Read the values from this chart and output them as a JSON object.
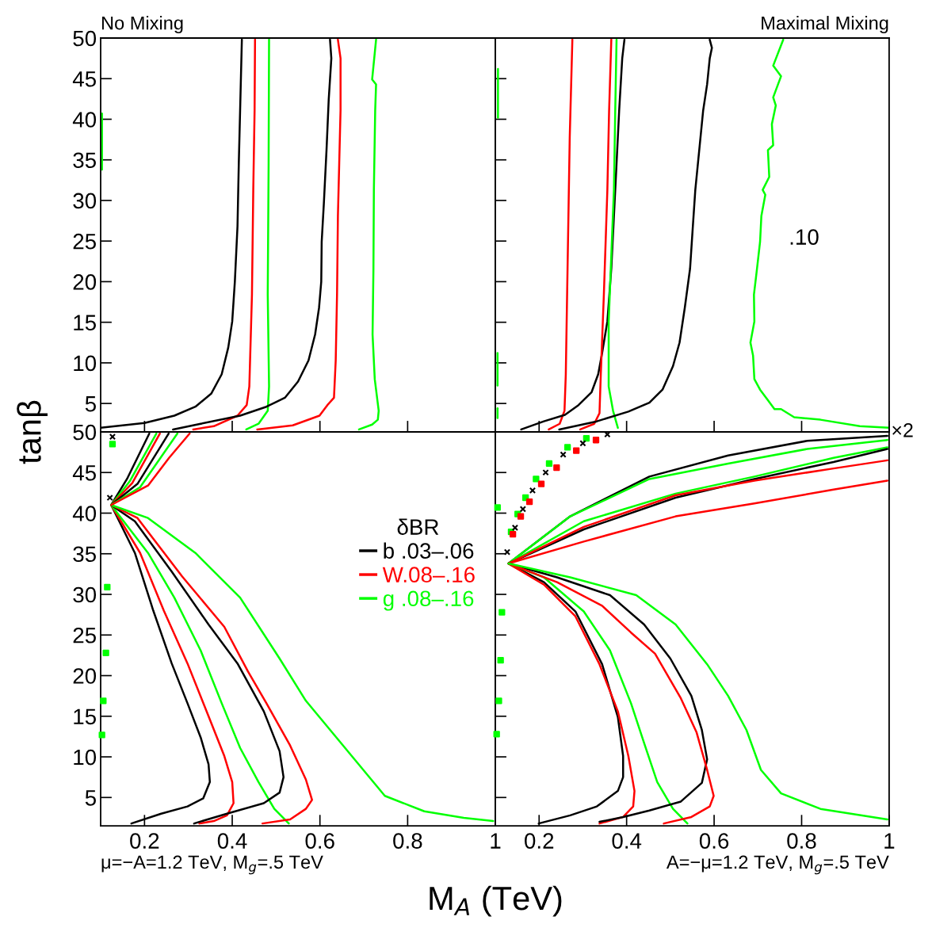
{
  "chart_data": [
    {
      "type": "line",
      "title": "No Mixing",
      "xlim": [
        0.1,
        1.0
      ],
      "ylim": [
        1.5,
        50
      ],
      "xticks": [
        0.2,
        0.4,
        0.6,
        0.8,
        1
      ],
      "yticks": [
        5,
        10,
        15,
        20,
        25,
        30,
        35,
        40,
        45,
        50
      ],
      "tick_labels": "y",
      "grid": false,
      "legend": false,
      "series": [
        {
          "color": "#000000",
          "x": [
            0.1,
            0.2,
            0.268,
            0.316,
            0.352,
            0.376,
            0.391,
            0.4,
            0.406,
            0.412,
            0.415,
            0.418,
            0.422
          ],
          "values": [
            2.0,
            2.6,
            3.5,
            4.6,
            6.2,
            8.6,
            11.9,
            15.1,
            20,
            26.8,
            34.6,
            41.1,
            49.8
          ]
        },
        {
          "color": "#ff0000",
          "x": [
            0.311,
            0.358,
            0.412,
            0.433,
            0.439,
            0.445,
            0.448,
            0.451,
            0.452
          ],
          "values": [
            1.8,
            2.2,
            3.5,
            4.8,
            7.1,
            18.4,
            31.3,
            41.1,
            49.8
          ]
        },
        {
          "color": "#00ff00",
          "x": [
            0.432,
            0.46,
            0.481,
            0.484,
            0.481,
            0.483,
            0.484
          ],
          "values": [
            1.8,
            2.5,
            4.1,
            7.1,
            18.4,
            34.6,
            49.8
          ]
        },
        {
          "color": "#000000",
          "x": [
            0.265,
            0.328,
            0.418,
            0.478,
            0.52,
            0.55,
            0.574,
            0.589,
            0.598,
            0.603,
            0.604,
            0.609,
            0.615,
            0.62,
            0.626,
            0.623
          ],
          "values": [
            1.8,
            2.5,
            3.5,
            4.6,
            5.7,
            7.7,
            10.3,
            13.5,
            16.8,
            20,
            24.9,
            29.7,
            36.2,
            42.4,
            47.5,
            49.8
          ]
        },
        {
          "color": "#ff0000",
          "x": [
            0.457,
            0.538,
            0.599,
            0.617,
            0.632,
            0.636,
            0.639,
            0.641,
            0.644,
            0.647,
            0.647,
            0.641
          ],
          "values": [
            1.8,
            2.3,
            3.5,
            4.8,
            5.7,
            10.3,
            18.4,
            28.1,
            34.6,
            41.1,
            47.5,
            49.8
          ]
        },
        {
          "color": "#00ff00",
          "x": [
            0.689,
            0.719,
            0.732,
            0.734,
            0.725,
            0.72,
            0.722,
            0.723,
            0.726,
            0.728,
            0.719,
            0.728
          ],
          "values": [
            1.8,
            2.4,
            3.0,
            4.1,
            8.0,
            13.5,
            21.6,
            31.3,
            41.1,
            44.3,
            44.9,
            49.8
          ]
        },
        {
          "color": "#00ff00",
          "x": [
            0.103,
            0.103
          ],
          "values": [
            33.8,
            40.7
          ]
        }
      ]
    },
    {
      "type": "line",
      "title": "Maximal Mixing",
      "xlim": [
        0.1,
        1.0
      ],
      "ylim": [
        1.5,
        50
      ],
      "xticks": [
        0.2,
        0.4,
        0.6,
        0.8,
        1
      ],
      "yticks": [
        5,
        10,
        15,
        20,
        25,
        30,
        35,
        40,
        45,
        50
      ],
      "tick_labels": false,
      "grid": false,
      "legend": false,
      "annotations": [
        ".10"
      ],
      "series": [
        {
          "color": "#ff0000",
          "x": [
            0.222,
            0.247,
            0.258,
            0.261,
            0.265,
            0.27,
            0.276
          ],
          "values": [
            1.8,
            2.5,
            4.1,
            8.6,
            21.6,
            37.8,
            49.8
          ]
        },
        {
          "color": "#000000",
          "x": [
            0.159,
            0.211,
            0.259,
            0.29,
            0.32,
            0.335,
            0.344,
            0.356,
            0.365,
            0.374,
            0.383,
            0.39,
            0.395
          ],
          "values": [
            1.8,
            2.8,
            3.6,
            4.8,
            6.4,
            8.6,
            11.2,
            15.1,
            21.6,
            31.3,
            41.1,
            47.5,
            49.8
          ]
        },
        {
          "color": "#ff0000",
          "x": [
            0.294,
            0.326,
            0.338,
            0.341,
            0.348,
            0.356,
            0.36,
            0.365
          ],
          "values": [
            1.8,
            2.5,
            3.8,
            8.6,
            18.4,
            31.3,
            41.1,
            49.8
          ]
        },
        {
          "color": "#00ff00",
          "x": [
            0.38,
            0.369,
            0.359,
            0.359,
            0.365,
            0.371,
            0.374,
            0.377
          ],
          "values": [
            2.0,
            4.1,
            7.1,
            15.1,
            23.2,
            31.3,
            41.1,
            49.8
          ]
        },
        {
          "color": "#000000",
          "x": [
            0.246,
            0.332,
            0.404,
            0.452,
            0.482,
            0.506,
            0.521,
            0.533,
            0.545,
            0.551,
            0.557,
            0.566,
            0.575,
            0.584,
            0.59,
            0.595,
            0.59
          ],
          "values": [
            1.8,
            2.8,
            4.0,
            5.1,
            6.7,
            9.6,
            12.5,
            16.8,
            21.6,
            26.5,
            31.3,
            36.2,
            41.1,
            44.3,
            47.5,
            48.8,
            49.8
          ]
        },
        {
          "color": "#00ff00",
          "x": [
            1.0,
            0.933,
            0.843,
            0.783,
            0.753,
            0.738,
            0.723,
            0.705,
            0.692,
            0.689,
            0.683,
            0.692,
            0.691,
            0.698,
            0.705,
            0.708,
            0.717,
            0.711,
            0.726,
            0.723,
            0.735,
            0.732,
            0.741,
            0.735,
            0.753,
            0.735,
            0.758
          ],
          "values": [
            2.0,
            2.2,
            3.0,
            3.3,
            4.3,
            4.3,
            5.4,
            6.7,
            8.0,
            10.9,
            12.5,
            15.1,
            18.4,
            21.6,
            24.9,
            28.1,
            30.7,
            31.3,
            32.9,
            36.2,
            36.8,
            39.4,
            41.7,
            42.7,
            45.3,
            46.6,
            49.8
          ]
        },
        {
          "color": "#00ff00",
          "x": [
            0.106,
            0.106
          ],
          "values": [
            40.2,
            46.2
          ]
        },
        {
          "color": "#00ff00",
          "x": [
            0.105,
            0.105
          ],
          "values": [
            7.2,
            11.2
          ]
        },
        {
          "color": "#00ff00",
          "x": [
            0.105,
            0.105
          ],
          "values": [
            3.2,
            4.4
          ]
        }
      ]
    },
    {
      "type": "line",
      "xlabel": "M$_{A}$ (TeV)",
      "ylabel": "tanβ",
      "subtitle": "μ=−A=1.2 TeV, M$_{g}$=.5 TeV",
      "xlim": [
        0.1,
        1.0
      ],
      "ylim": [
        1.5,
        50
      ],
      "xticks": [
        0.2,
        0.4,
        0.6,
        0.8,
        1
      ],
      "yticks": [
        5,
        10,
        15,
        20,
        25,
        30,
        35,
        40,
        45,
        50
      ],
      "grid": false,
      "legend": "upper right",
      "legend_title": "δBR",
      "series": [
        {
          "name": "b .03–.06",
          "color": "#000000",
          "x": [
            0.124,
            0.178,
            0.22,
            0.262,
            0.298,
            0.328,
            0.346,
            0.349,
            0.334,
            0.298,
            0.238,
            0.17
          ],
          "values": [
            41.0,
            35.1,
            28.0,
            21.5,
            16.6,
            12.4,
            9.1,
            6.9,
            4.9,
            3.9,
            3.0,
            1.8
          ]
        },
        {
          "name": "W.08–.16",
          "color": "#ff0000",
          "x": [
            0.124,
            0.19,
            0.244,
            0.298,
            0.346,
            0.382,
            0.4,
            0.403,
            0.388,
            0.358,
            0.325
          ],
          "values": [
            41.0,
            35.1,
            28.0,
            21.5,
            15.0,
            10.1,
            6.9,
            4.3,
            2.8,
            2.1,
            1.8
          ]
        },
        {
          "name": "g .08–.16",
          "color": "#00ff00",
          "x": [
            0.124,
            0.208,
            0.268,
            0.328,
            0.376,
            0.418,
            0.46,
            0.496,
            0.529
          ],
          "values": [
            41.0,
            35.1,
            29.6,
            23.1,
            16.6,
            11.1,
            6.9,
            3.6,
            1.8
          ]
        },
        {
          "color": "#000000",
          "x": [
            0.124,
            0.178,
            0.262,
            0.346,
            0.412,
            0.472,
            0.508,
            0.517,
            0.508,
            0.472,
            0.388,
            0.313
          ],
          "values": [
            41.0,
            39.0,
            32.8,
            26.3,
            21.5,
            15.6,
            10.7,
            7.5,
            5.6,
            4.3,
            3.0,
            1.8
          ]
        },
        {
          "color": "#ff0000",
          "x": [
            0.124,
            0.184,
            0.286,
            0.382,
            0.436,
            0.478,
            0.532,
            0.568,
            0.582,
            0.568,
            0.532,
            0.469
          ],
          "values": [
            41.0,
            39.4,
            32.2,
            26.0,
            20.5,
            16.6,
            11.4,
            7.2,
            4.7,
            3.6,
            2.3,
            1.8
          ]
        },
        {
          "color": "#00ff00",
          "x": [
            0.124,
            0.208,
            0.316,
            0.418,
            0.508,
            0.568,
            0.628,
            0.688,
            0.748,
            0.838,
            0.928,
            0.995
          ],
          "values": [
            41.0,
            39.4,
            35.1,
            29.6,
            22.1,
            16.9,
            13.0,
            9.1,
            5.2,
            3.3,
            2.5,
            2.1
          ]
        },
        {
          "color": "#000000",
          "x": [
            0.124,
            0.16,
            0.211
          ],
          "values": [
            41.0,
            44.2,
            49.8
          ]
        },
        {
          "color": "#00ff00",
          "x": [
            0.124,
            0.166,
            0.227
          ],
          "values": [
            41.0,
            43.9,
            49.8
          ]
        },
        {
          "color": "#ff0000",
          "x": [
            0.124,
            0.172,
            0.235
          ],
          "values": [
            41.0,
            43.7,
            49.8
          ]
        },
        {
          "color": "#000000",
          "x": [
            0.124,
            0.184,
            0.255
          ],
          "values": [
            41.0,
            43.6,
            49.8
          ]
        },
        {
          "color": "#00ff00",
          "x": [
            0.124,
            0.19,
            0.275
          ],
          "values": [
            41.0,
            43.2,
            49.8
          ]
        },
        {
          "color": "#ff0000",
          "x": [
            0.124,
            0.208,
            0.256,
            0.303
          ],
          "values": [
            41.0,
            43.4,
            46.8,
            49.8
          ]
        },
        {
          "type": "scatter",
          "marker": "square",
          "color": "#00ff00",
          "x": [
            0.115,
            0.112,
            0.106,
            0.103,
            0.127
          ],
          "values": [
            30.9,
            22.8,
            16.9,
            12.7,
            48.5
          ]
        },
        {
          "type": "scatter",
          "marker": "cross",
          "color": "#000000",
          "x": [
            0.121,
            0.127
          ],
          "values": [
            41.9,
            49.4
          ]
        }
      ]
    },
    {
      "type": "line",
      "subtitle": "A=−μ=1.2 TeV, M$_{g}$=.5 TeV",
      "annotations": [
        "×2"
      ],
      "xlim": [
        0.1,
        1.0
      ],
      "ylim": [
        1.5,
        50
      ],
      "xticks": [
        0.2,
        0.4,
        0.6,
        0.8,
        1
      ],
      "yticks": [
        5,
        10,
        15,
        20,
        25,
        30,
        35,
        40,
        45,
        50
      ],
      "tick_labels": "x",
      "grid": false,
      "legend": false,
      "series": [
        {
          "color": "#000000",
          "x": [
            0.13,
            0.271,
            0.452,
            0.632,
            0.813,
            0.996
          ],
          "values": [
            33.8,
            39.6,
            44.5,
            47.1,
            48.9,
            49.5
          ]
        },
        {
          "color": "#00ff00",
          "x": [
            0.13,
            0.271,
            0.452,
            0.632,
            0.813,
            0.996
          ],
          "values": [
            33.8,
            39.6,
            44.2,
            46.1,
            47.9,
            49.0
          ]
        },
        {
          "color": "#00ff00",
          "x": [
            0.13,
            0.302,
            0.512,
            0.692,
            0.873,
            0.996
          ],
          "values": [
            33.8,
            39.0,
            42.4,
            44.5,
            46.8,
            48.1
          ]
        },
        {
          "color": "#000000",
          "x": [
            0.13,
            0.302,
            0.512,
            0.692,
            0.873,
            0.996
          ],
          "values": [
            33.8,
            38.0,
            41.9,
            44.2,
            46.3,
            47.9
          ]
        },
        {
          "color": "#ff0000",
          "x": [
            0.13,
            0.302,
            0.512,
            0.692,
            0.873,
            0.996
          ],
          "values": [
            33.8,
            38.3,
            42.2,
            44.0,
            45.5,
            46.5
          ]
        },
        {
          "color": "#ff0000",
          "x": [
            0.13,
            0.302,
            0.512,
            0.692,
            0.873,
            0.996
          ],
          "values": [
            33.8,
            36.5,
            39.6,
            41.2,
            42.9,
            44.0
          ]
        },
        {
          "color": "#000000",
          "x": [
            0.13,
            0.211,
            0.283,
            0.344,
            0.38,
            0.392,
            0.392,
            0.38,
            0.332,
            0.271,
            0.199
          ],
          "values": [
            33.8,
            31.5,
            27.9,
            21.4,
            14.9,
            10.1,
            7.5,
            5.8,
            3.9,
            2.8,
            1.8
          ]
        },
        {
          "color": "#ff0000",
          "x": [
            0.13,
            0.211,
            0.283,
            0.338,
            0.38,
            0.404,
            0.418,
            0.415,
            0.392,
            0.338
          ],
          "values": [
            33.8,
            31.2,
            27.3,
            21.4,
            15.6,
            10.1,
            5.8,
            3.9,
            2.6,
            1.8
          ]
        },
        {
          "color": "#00ff00",
          "x": [
            0.13,
            0.211,
            0.302,
            0.362,
            0.41,
            0.44,
            0.47,
            0.506,
            0.539
          ],
          "values": [
            33.8,
            32.1,
            27.9,
            23.1,
            16.6,
            11.7,
            6.9,
            3.6,
            1.8
          ]
        },
        {
          "color": "#000000",
          "x": [
            0.13,
            0.241,
            0.362,
            0.44,
            0.5,
            0.548,
            0.572,
            0.584,
            0.572,
            0.524,
            0.452,
            0.392,
            0.338
          ],
          "values": [
            33.8,
            32.1,
            29.9,
            26.3,
            22.1,
            17.5,
            13.3,
            9.7,
            6.8,
            4.5,
            3.4,
            2.6,
            2.0
          ]
        },
        {
          "color": "#ff0000",
          "x": [
            0.13,
            0.241,
            0.344,
            0.41,
            0.465,
            0.524,
            0.56,
            0.584,
            0.599,
            0.59,
            0.548,
            0.485
          ],
          "values": [
            33.8,
            31.5,
            28.6,
            25.3,
            22.7,
            17.2,
            13.0,
            8.4,
            5.2,
            3.9,
            2.6,
            1.8
          ]
        },
        {
          "color": "#00ff00",
          "x": [
            0.13,
            0.271,
            0.422,
            0.512,
            0.584,
            0.632,
            0.674,
            0.707,
            0.753,
            0.843,
            0.996
          ],
          "values": [
            33.8,
            32.1,
            29.9,
            26.3,
            21.4,
            17.5,
            13.3,
            8.4,
            5.5,
            3.6,
            2.3
          ]
        },
        {
          "type": "scatter",
          "marker": "square",
          "color": "#00ff00",
          "x": [
            0.136,
            0.151,
            0.169,
            0.193,
            0.223,
            0.265,
            0.308,
            0.115,
            0.112,
            0.108,
            0.103,
            0.105
          ],
          "values": [
            37.7,
            39.9,
            41.9,
            44.2,
            46.1,
            48.1,
            49.2,
            27.8,
            21.9,
            16.9,
            12.8,
            40.7
          ]
        },
        {
          "type": "scatter",
          "marker": "square",
          "color": "#ff0000",
          "x": [
            0.14,
            0.158,
            0.178,
            0.205,
            0.24,
            0.285,
            0.33
          ],
          "values": [
            37.4,
            39.6,
            41.4,
            43.6,
            45.6,
            47.7,
            49.0
          ]
        },
        {
          "type": "scatter",
          "marker": "cross",
          "color": "#000000",
          "x": [
            0.127,
            0.145,
            0.163,
            0.185,
            0.215,
            0.255,
            0.3,
            0.356
          ],
          "values": [
            35.2,
            38.2,
            40.5,
            42.8,
            45.0,
            47.2,
            48.6,
            49.7
          ]
        }
      ]
    }
  ]
}
